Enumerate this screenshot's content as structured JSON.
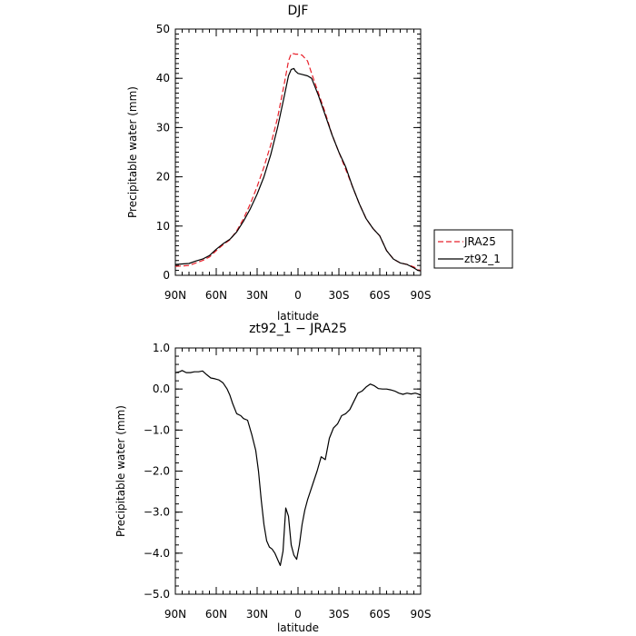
{
  "chart_data": [
    {
      "type": "line",
      "title": "DJF",
      "xlabel": "latitude",
      "ylabel": "Precipitable water (mm)",
      "xlim": [
        90,
        -90
      ],
      "ylim": [
        0,
        50
      ],
      "x_ticks": [
        90,
        60,
        30,
        0,
        -30,
        -60,
        -90
      ],
      "x_tick_labels": [
        "90N",
        "60N",
        "30N",
        "0",
        "30S",
        "60S",
        "90S"
      ],
      "y_ticks": [
        0,
        10,
        20,
        30,
        40,
        50
      ],
      "y_tick_labels": [
        "0",
        "10",
        "20",
        "30",
        "40",
        "50"
      ],
      "legend_position": "right",
      "series": [
        {
          "name": "JRA25",
          "color": "#e8202a",
          "dash": "dashed",
          "x": [
            90,
            85,
            80,
            75,
            70,
            65,
            60,
            55,
            50,
            45,
            40,
            35,
            30,
            25,
            20,
            15,
            10,
            7,
            5,
            3,
            2,
            0,
            -3,
            -7,
            -10,
            -15,
            -20,
            -25,
            -30,
            -35,
            -40,
            -45,
            -50,
            -55,
            -60,
            -65,
            -70,
            -75,
            -80,
            -85,
            -88,
            -90
          ],
          "values": [
            1.8,
            1.9,
            2.0,
            2.5,
            3.0,
            3.7,
            5.0,
            6.2,
            7.2,
            9.0,
            11.5,
            14.5,
            18.0,
            22.0,
            26.5,
            32.0,
            39.0,
            43.5,
            45.0,
            45.0,
            44.9,
            44.9,
            44.7,
            43.5,
            41.0,
            37.0,
            33.0,
            28.5,
            25.0,
            21.5,
            18.0,
            14.5,
            11.5,
            9.5,
            8.0,
            5.0,
            3.3,
            2.5,
            2.2,
            1.7,
            1.1,
            1.0
          ]
        },
        {
          "name": "zt92_1",
          "color": "#000000",
          "dash": "solid",
          "x": [
            90,
            85,
            80,
            75,
            70,
            65,
            60,
            55,
            50,
            45,
            40,
            35,
            30,
            25,
            20,
            15,
            10,
            7,
            5,
            3,
            2,
            0,
            -3,
            -7,
            -10,
            -15,
            -20,
            -25,
            -30,
            -35,
            -40,
            -45,
            -50,
            -55,
            -60,
            -65,
            -70,
            -75,
            -80,
            -85,
            -88,
            -90
          ],
          "values": [
            2.2,
            2.3,
            2.4,
            2.9,
            3.3,
            4.0,
            5.3,
            6.4,
            7.3,
            8.8,
            11.0,
            13.5,
            16.5,
            20.0,
            24.5,
            30.0,
            36.5,
            40.5,
            41.8,
            42.0,
            41.5,
            41.0,
            40.8,
            40.5,
            40.0,
            36.5,
            32.5,
            28.5,
            25.0,
            22.0,
            18.0,
            14.5,
            11.5,
            9.5,
            8.0,
            5.0,
            3.3,
            2.5,
            2.2,
            1.5,
            1.0,
            0.9
          ]
        }
      ]
    },
    {
      "type": "line",
      "title": "zt92_1 − JRA25",
      "xlabel": "latitude",
      "ylabel": "Precipitable water (mm)",
      "xlim": [
        90,
        -90
      ],
      "ylim": [
        -5.0,
        1.0
      ],
      "x_ticks": [
        90,
        60,
        30,
        0,
        -30,
        -60,
        -90
      ],
      "x_tick_labels": [
        "90N",
        "60N",
        "30N",
        "0",
        "30S",
        "60S",
        "90S"
      ],
      "y_ticks": [
        -5.0,
        -4.0,
        -3.0,
        -2.0,
        -1.0,
        0.0,
        1.0
      ],
      "y_tick_labels": [
        "−5.0",
        "−4.0",
        "−3.0",
        "−2.0",
        "−1.0",
        "0.0",
        "1.0"
      ],
      "series": [
        {
          "color": "#000000",
          "dash": "solid",
          "x": [
            90,
            87,
            85,
            82,
            79,
            76,
            73,
            70,
            67,
            64,
            61,
            58,
            55,
            52,
            50,
            48,
            45,
            42,
            40,
            37,
            34,
            31,
            29,
            27,
            25,
            23,
            21,
            19,
            17,
            15,
            13,
            11,
            9,
            7,
            5,
            3,
            1,
            -1,
            -3,
            -5,
            -7,
            -9,
            -11,
            -14,
            -17,
            -20,
            -23,
            -26,
            -29,
            -32,
            -35,
            -38,
            -41,
            -44,
            -47,
            -50,
            -53,
            -56,
            -59,
            -62,
            -65,
            -68,
            -71,
            -74,
            -77,
            -80,
            -83,
            -86,
            -88,
            -90
          ],
          "values": [
            0.4,
            0.42,
            0.45,
            0.4,
            0.4,
            0.42,
            0.42,
            0.44,
            0.35,
            0.27,
            0.25,
            0.22,
            0.15,
            0.0,
            -0.15,
            -0.35,
            -0.6,
            -0.65,
            -0.72,
            -0.76,
            -1.1,
            -1.5,
            -2.0,
            -2.7,
            -3.3,
            -3.7,
            -3.85,
            -3.9,
            -4.0,
            -4.15,
            -4.3,
            -3.95,
            -2.9,
            -3.1,
            -3.8,
            -4.05,
            -4.15,
            -3.8,
            -3.3,
            -2.95,
            -2.7,
            -2.5,
            -2.3,
            -2.0,
            -1.65,
            -1.72,
            -1.2,
            -0.95,
            -0.85,
            -0.65,
            -0.6,
            -0.5,
            -0.3,
            -0.1,
            -0.05,
            0.05,
            0.12,
            0.08,
            0.01,
            0.0,
            0.0,
            -0.02,
            -0.05,
            -0.1,
            -0.13,
            -0.1,
            -0.12,
            -0.1,
            -0.12,
            -0.15
          ]
        }
      ]
    }
  ]
}
